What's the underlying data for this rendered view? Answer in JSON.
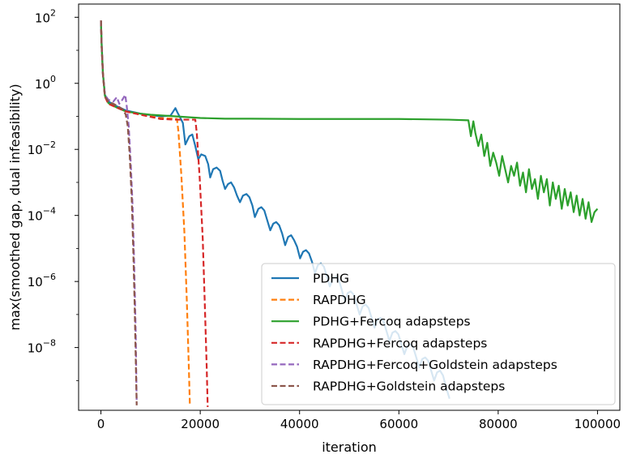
{
  "chart_data": {
    "type": "line",
    "title": "",
    "xlabel": "iteration",
    "ylabel": "max(smoothed gap, dual infeasibility)",
    "xlim": [
      -4500,
      104500
    ],
    "ylim_log10": [
      -9.9,
      2.4
    ],
    "y_scale": "log",
    "grid": false,
    "legend_position": "lower-right",
    "x_ticks": [
      {
        "value": 0,
        "label": "0"
      },
      {
        "value": 20000,
        "label": "20000"
      },
      {
        "value": 40000,
        "label": "40000"
      },
      {
        "value": 60000,
        "label": "60000"
      },
      {
        "value": 80000,
        "label": "80000"
      },
      {
        "value": 100000,
        "label": "100000"
      }
    ],
    "y_ticks": [
      {
        "exp": 2,
        "base": "10",
        "sup": "2"
      },
      {
        "exp": 0,
        "base": "10",
        "sup": "0"
      },
      {
        "exp": -2,
        "base": "10",
        "sup": "−2"
      },
      {
        "exp": -4,
        "base": "10",
        "sup": "−4"
      },
      {
        "exp": -6,
        "base": "10",
        "sup": "−6"
      },
      {
        "exp": -8,
        "base": "10",
        "sup": "−8"
      }
    ],
    "series": [
      {
        "name": "PDHG",
        "color": "#1f77b4",
        "dash": "solid",
        "points": [
          [
            0,
            1.9
          ],
          [
            150,
            1.2
          ],
          [
            400,
            0.3
          ],
          [
            800,
            -0.35
          ],
          [
            1500,
            -0.55
          ],
          [
            3000,
            -0.68
          ],
          [
            5000,
            -0.82
          ],
          [
            8000,
            -0.92
          ],
          [
            12000,
            -1.0
          ],
          [
            14000,
            -0.98
          ],
          [
            15000,
            -0.75
          ],
          [
            15400,
            -0.88
          ],
          [
            16000,
            -1.05
          ],
          [
            16500,
            -1.2
          ],
          [
            17000,
            -1.85
          ],
          [
            17800,
            -1.6
          ],
          [
            18400,
            -1.55
          ],
          [
            19000,
            -1.9
          ],
          [
            19600,
            -2.3
          ],
          [
            20200,
            -2.15
          ],
          [
            21000,
            -2.2
          ],
          [
            21600,
            -2.45
          ],
          [
            22000,
            -2.85
          ],
          [
            22600,
            -2.6
          ],
          [
            23300,
            -2.55
          ],
          [
            24000,
            -2.65
          ],
          [
            24500,
            -2.95
          ],
          [
            25000,
            -3.2
          ],
          [
            25600,
            -3.05
          ],
          [
            26200,
            -3.0
          ],
          [
            26800,
            -3.15
          ],
          [
            27400,
            -3.4
          ],
          [
            28000,
            -3.6
          ],
          [
            28600,
            -3.4
          ],
          [
            29300,
            -3.35
          ],
          [
            29900,
            -3.45
          ],
          [
            30500,
            -3.7
          ],
          [
            31000,
            -4.05
          ],
          [
            31700,
            -3.8
          ],
          [
            32300,
            -3.75
          ],
          [
            32900,
            -3.85
          ],
          [
            33500,
            -4.15
          ],
          [
            34100,
            -4.45
          ],
          [
            34700,
            -4.25
          ],
          [
            35300,
            -4.2
          ],
          [
            35900,
            -4.3
          ],
          [
            36500,
            -4.55
          ],
          [
            37100,
            -4.9
          ],
          [
            37700,
            -4.65
          ],
          [
            38300,
            -4.6
          ],
          [
            38900,
            -4.75
          ],
          [
            39500,
            -4.95
          ],
          [
            40100,
            -5.3
          ],
          [
            40700,
            -5.1
          ],
          [
            41300,
            -5.05
          ],
          [
            41900,
            -5.15
          ],
          [
            42500,
            -5.4
          ],
          [
            43100,
            -5.75
          ],
          [
            43700,
            -5.5
          ],
          [
            44300,
            -5.45
          ],
          [
            44900,
            -5.55
          ],
          [
            45500,
            -5.85
          ],
          [
            46100,
            -6.15
          ],
          [
            46700,
            -5.9
          ],
          [
            47300,
            -5.85
          ],
          [
            47900,
            -5.95
          ],
          [
            48500,
            -6.25
          ],
          [
            49100,
            -6.6
          ],
          [
            49700,
            -6.35
          ],
          [
            50300,
            -6.3
          ],
          [
            50900,
            -6.4
          ],
          [
            51500,
            -6.7
          ],
          [
            52100,
            -7.0
          ],
          [
            52700,
            -6.75
          ],
          [
            53300,
            -6.7
          ],
          [
            53900,
            -6.8
          ],
          [
            54500,
            -7.1
          ],
          [
            55100,
            -7.4
          ],
          [
            55700,
            -7.15
          ],
          [
            56300,
            -7.1
          ],
          [
            56900,
            -7.2
          ],
          [
            57500,
            -7.5
          ],
          [
            58100,
            -7.8
          ],
          [
            58700,
            -7.55
          ],
          [
            59300,
            -7.5
          ],
          [
            59900,
            -7.6
          ],
          [
            60500,
            -7.9
          ],
          [
            61100,
            -8.2
          ],
          [
            61700,
            -7.95
          ],
          [
            62300,
            -7.9
          ],
          [
            62900,
            -8.0
          ],
          [
            63500,
            -8.3
          ],
          [
            64100,
            -8.6
          ],
          [
            64700,
            -8.35
          ],
          [
            65300,
            -8.3
          ],
          [
            65900,
            -8.4
          ],
          [
            66500,
            -8.7
          ],
          [
            67100,
            -9.0
          ],
          [
            67700,
            -8.75
          ],
          [
            68300,
            -8.7
          ],
          [
            68900,
            -8.85
          ],
          [
            69500,
            -9.2
          ],
          [
            70200,
            -9.55
          ]
        ]
      },
      {
        "name": "RAPDHG",
        "color": "#ff7f0e",
        "dash": "dashed",
        "points": [
          [
            0,
            1.9
          ],
          [
            150,
            1.1
          ],
          [
            400,
            0.3
          ],
          [
            800,
            -0.4
          ],
          [
            1500,
            -0.62
          ],
          [
            3000,
            -0.72
          ],
          [
            5000,
            -0.85
          ],
          [
            8000,
            -0.95
          ],
          [
            12000,
            -1.05
          ],
          [
            15300,
            -1.08
          ],
          [
            15600,
            -1.45
          ],
          [
            16200,
            -2.8
          ],
          [
            16800,
            -4.5
          ],
          [
            17300,
            -6.6
          ],
          [
            17700,
            -8.6
          ],
          [
            17900,
            -9.7
          ]
        ]
      },
      {
        "name": "PDHG+Fercoq adapsteps",
        "color": "#2ca02c",
        "dash": "solid",
        "points": [
          [
            0,
            1.9
          ],
          [
            150,
            1.1
          ],
          [
            400,
            0.3
          ],
          [
            800,
            -0.38
          ],
          [
            1500,
            -0.6
          ],
          [
            3000,
            -0.72
          ],
          [
            5000,
            -0.85
          ],
          [
            8000,
            -0.92
          ],
          [
            10000,
            -0.95
          ],
          [
            15000,
            -1.0
          ],
          [
            20000,
            -1.05
          ],
          [
            25000,
            -1.07
          ],
          [
            30000,
            -1.07
          ],
          [
            40000,
            -1.08
          ],
          [
            50000,
            -1.08
          ],
          [
            60000,
            -1.08
          ],
          [
            70000,
            -1.1
          ],
          [
            74000,
            -1.12
          ],
          [
            74500,
            -1.6
          ],
          [
            75000,
            -1.15
          ],
          [
            75400,
            -1.5
          ],
          [
            76000,
            -1.9
          ],
          [
            76600,
            -1.55
          ],
          [
            77200,
            -2.2
          ],
          [
            77800,
            -1.8
          ],
          [
            78400,
            -2.5
          ],
          [
            79000,
            -2.1
          ],
          [
            79600,
            -2.4
          ],
          [
            80200,
            -2.8
          ],
          [
            80800,
            -2.2
          ],
          [
            81400,
            -2.6
          ],
          [
            82000,
            -3.0
          ],
          [
            82600,
            -2.5
          ],
          [
            83200,
            -2.8
          ],
          [
            83800,
            -2.4
          ],
          [
            84400,
            -3.1
          ],
          [
            85000,
            -2.7
          ],
          [
            85600,
            -3.3
          ],
          [
            86200,
            -2.6
          ],
          [
            86800,
            -3.2
          ],
          [
            87400,
            -2.9
          ],
          [
            88000,
            -3.5
          ],
          [
            88600,
            -2.8
          ],
          [
            89200,
            -3.3
          ],
          [
            89800,
            -2.9
          ],
          [
            90400,
            -3.7
          ],
          [
            91000,
            -3.0
          ],
          [
            91600,
            -3.5
          ],
          [
            92200,
            -3.1
          ],
          [
            92800,
            -3.8
          ],
          [
            93400,
            -3.2
          ],
          [
            94000,
            -3.7
          ],
          [
            94600,
            -3.3
          ],
          [
            95200,
            -3.9
          ],
          [
            95800,
            -3.4
          ],
          [
            96400,
            -4.0
          ],
          [
            97000,
            -3.5
          ],
          [
            97600,
            -4.1
          ],
          [
            98200,
            -3.6
          ],
          [
            98800,
            -4.2
          ],
          [
            99400,
            -3.9
          ],
          [
            100000,
            -3.8
          ]
        ]
      },
      {
        "name": "RAPDHG+Fercoq adapsteps",
        "color": "#d62728",
        "dash": "dashed",
        "points": [
          [
            0,
            1.9
          ],
          [
            150,
            1.1
          ],
          [
            400,
            0.3
          ],
          [
            800,
            -0.4
          ],
          [
            1500,
            -0.62
          ],
          [
            3000,
            -0.72
          ],
          [
            5000,
            -0.85
          ],
          [
            8000,
            -0.95
          ],
          [
            12000,
            -1.08
          ],
          [
            15000,
            -1.1
          ],
          [
            19000,
            -1.1
          ],
          [
            19300,
            -1.5
          ],
          [
            19900,
            -2.9
          ],
          [
            20500,
            -4.7
          ],
          [
            20900,
            -6.6
          ],
          [
            21300,
            -8.6
          ],
          [
            21500,
            -9.8
          ]
        ]
      },
      {
        "name": "RAPDHG+Fercoq+Goldstein adapsteps",
        "color": "#9467bd",
        "dash": "dashed",
        "points": [
          [
            0,
            1.9
          ],
          [
            150,
            1.1
          ],
          [
            400,
            0.25
          ],
          [
            800,
            -0.35
          ],
          [
            1500,
            -0.5
          ],
          [
            2500,
            -0.55
          ],
          [
            3200,
            -0.42
          ],
          [
            3700,
            -0.62
          ],
          [
            4300,
            -0.5
          ],
          [
            4900,
            -0.35
          ],
          [
            5200,
            -0.7
          ],
          [
            5600,
            -1.3
          ],
          [
            6000,
            -2.4
          ],
          [
            6400,
            -3.8
          ],
          [
            6700,
            -5.5
          ],
          [
            7000,
            -7.5
          ],
          [
            7200,
            -9.7
          ]
        ]
      },
      {
        "name": "RAPDHG+Goldstein adapsteps",
        "color": "#8c564b",
        "dash": "dashed",
        "points": [
          [
            0,
            1.9
          ],
          [
            150,
            1.1
          ],
          [
            400,
            0.25
          ],
          [
            800,
            -0.4
          ],
          [
            1500,
            -0.55
          ],
          [
            2500,
            -0.62
          ],
          [
            3500,
            -0.7
          ],
          [
            4500,
            -0.8
          ],
          [
            5000,
            -0.95
          ],
          [
            5400,
            -1.3
          ],
          [
            5800,
            -2.2
          ],
          [
            6200,
            -3.5
          ],
          [
            6500,
            -5.0
          ],
          [
            6800,
            -6.8
          ],
          [
            7000,
            -8.3
          ],
          [
            7200,
            -9.75
          ]
        ]
      }
    ]
  }
}
